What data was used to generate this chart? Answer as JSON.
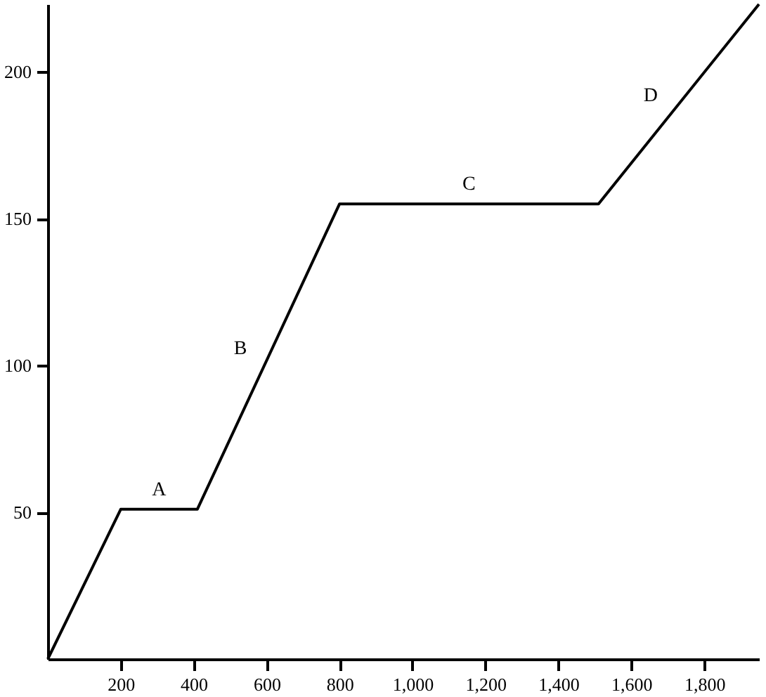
{
  "chart_data": {
    "type": "line",
    "x": [
      0,
      200,
      410,
      800,
      1510,
      1950
    ],
    "series": [
      {
        "color": "#000000",
        "values": [
          0,
          51,
          51,
          155,
          155,
          223
        ]
      }
    ],
    "xlim": [
      0,
      1950
    ],
    "ylim": [
      0,
      223
    ],
    "xticks": [
      {
        "value": 200,
        "label": "200"
      },
      {
        "value": 400,
        "label": "400"
      },
      {
        "value": 600,
        "label": "600"
      },
      {
        "value": 800,
        "label": "800"
      },
      {
        "value": 1000,
        "label": "1,000"
      },
      {
        "value": 1200,
        "label": "1,200"
      },
      {
        "value": 1400,
        "label": "1,400"
      },
      {
        "value": 1600,
        "label": "1,600"
      },
      {
        "value": 1800,
        "label": "1,800"
      }
    ],
    "yticks": [
      50,
      100,
      150,
      200
    ],
    "annotations": [
      "A",
      "B",
      "C",
      "D"
    ]
  }
}
